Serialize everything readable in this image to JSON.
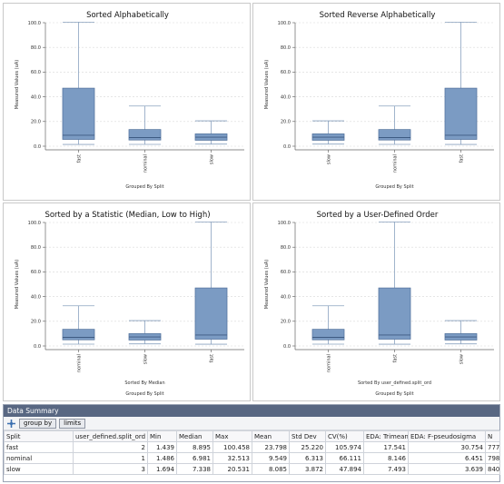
{
  "chart_data": [
    {
      "type": "boxplot",
      "title": "Sorted Alphabetically",
      "ylabel": "Measured Values (uA)",
      "xlabel": "Grouped By Split",
      "ylim": [
        0,
        100
      ],
      "yticks": [
        "0.0",
        "20.0",
        "40.0",
        "60.0",
        "80.0",
        "100.0"
      ],
      "categories": [
        "fast",
        "nominal",
        "slow"
      ],
      "boxes": [
        {
          "min": 1.439,
          "q1": 5.5,
          "median": 8.895,
          "q3": 47,
          "max": 100.458
        },
        {
          "min": 1.486,
          "q1": 5.0,
          "median": 6.981,
          "q3": 13.5,
          "max": 32.513
        },
        {
          "min": 1.694,
          "q1": 4.8,
          "median": 7.338,
          "q3": 10,
          "max": 20.531
        }
      ]
    },
    {
      "type": "boxplot",
      "title": "Sorted Reverse Alphabetically",
      "ylabel": "Measured Values (uA)",
      "xlabel": "Grouped By Split",
      "ylim": [
        0,
        100
      ],
      "yticks": [
        "0.0",
        "20.0",
        "40.0",
        "60.0",
        "80.0",
        "100.0"
      ],
      "categories": [
        "slow",
        "nominal",
        "fast"
      ],
      "boxes": [
        {
          "min": 1.694,
          "q1": 4.8,
          "median": 7.338,
          "q3": 10,
          "max": 20.531
        },
        {
          "min": 1.486,
          "q1": 5.0,
          "median": 6.981,
          "q3": 13.5,
          "max": 32.513
        },
        {
          "min": 1.439,
          "q1": 5.5,
          "median": 8.895,
          "q3": 47,
          "max": 100.458
        }
      ]
    },
    {
      "type": "boxplot",
      "title": "Sorted by a Statistic (Median, Low to High)",
      "ylabel": "Measured Values (uA)",
      "xlabel": "Sorted By Median",
      "xlabel2": "Grouped By Split",
      "ylim": [
        0,
        100
      ],
      "yticks": [
        "0.0",
        "20.0",
        "40.0",
        "60.0",
        "80.0",
        "100.0"
      ],
      "categories": [
        "nominal",
        "slow",
        "fast"
      ],
      "boxes": [
        {
          "min": 1.486,
          "q1": 5.0,
          "median": 6.981,
          "q3": 13.5,
          "max": 32.513
        },
        {
          "min": 1.694,
          "q1": 4.8,
          "median": 7.338,
          "q3": 10,
          "max": 20.531
        },
        {
          "min": 1.439,
          "q1": 5.5,
          "median": 8.895,
          "q3": 47,
          "max": 100.458
        }
      ]
    },
    {
      "type": "boxplot",
      "title": "Sorted by a User-Defined Order",
      "ylabel": "Measured Values (uA)",
      "xlabel": "Sorted By user_defined.split_ord",
      "xlabel2": "Grouped By Split",
      "ylim": [
        0,
        100
      ],
      "yticks": [
        "0.0",
        "20.0",
        "40.0",
        "60.0",
        "80.0",
        "100.0"
      ],
      "categories": [
        "nominal",
        "fast",
        "slow"
      ],
      "boxes": [
        {
          "min": 1.486,
          "q1": 5.0,
          "median": 6.981,
          "q3": 13.5,
          "max": 32.513
        },
        {
          "min": 1.439,
          "q1": 5.5,
          "median": 8.895,
          "q3": 47,
          "max": 100.458
        },
        {
          "min": 1.694,
          "q1": 4.8,
          "median": 7.338,
          "q3": 10,
          "max": 20.531
        }
      ]
    }
  ],
  "colors": {
    "box_fill": "#7b9bc3",
    "box_stroke": "#4f6f99",
    "header_bg": "#586782"
  },
  "summary": {
    "title": "Data Summary",
    "toolbar": {
      "icon": "add-stat-icon",
      "group_by": "group by",
      "limits": "limits"
    },
    "columns": [
      "Split",
      "user_defined.split_ord",
      "Min",
      "Median",
      "Max",
      "Mean",
      "Std Dev",
      "CV(%)",
      "EDA: Trimean",
      "EDA: F-pseudosigma",
      "N"
    ],
    "rows": [
      [
        "fast",
        "2",
        "1.439",
        "8.895",
        "100.458",
        "23.798",
        "25.220",
        "105.974",
        "17.541",
        "30.754",
        "777"
      ],
      [
        "nominal",
        "1",
        "1.486",
        "6.981",
        "32.513",
        "9.549",
        "6.313",
        "66.111",
        "8.146",
        "6.451",
        "798"
      ],
      [
        "slow",
        "3",
        "1.694",
        "7.338",
        "20.531",
        "8.085",
        "3.872",
        "47.894",
        "7.493",
        "3.639",
        "840"
      ]
    ]
  }
}
